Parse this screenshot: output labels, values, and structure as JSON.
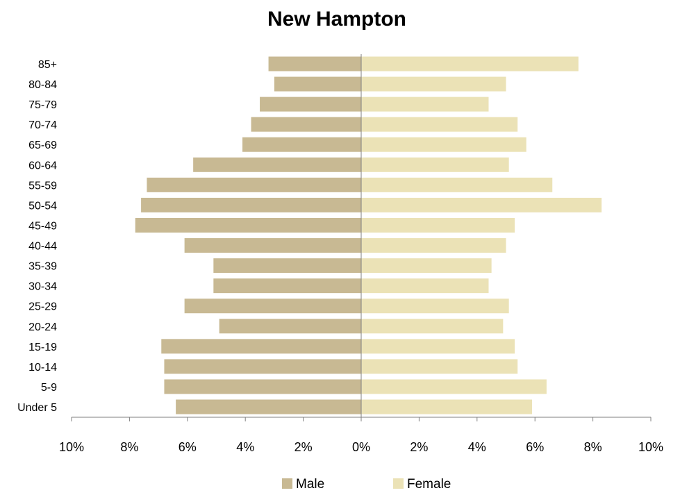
{
  "chart_data": {
    "type": "bar",
    "orientation": "horizontal",
    "title": "New Hampton",
    "categories": [
      "Under 5",
      "5-9",
      "10-14",
      "15-19",
      "20-24",
      "25-29",
      "30-34",
      "35-39",
      "40-44",
      "45-49",
      "50-54",
      "55-59",
      "60-64",
      "65-69",
      "70-74",
      "75-79",
      "80-84",
      "85+"
    ],
    "series": [
      {
        "name": "Male",
        "color": "#c8b993",
        "values": [
          6.4,
          6.8,
          6.8,
          6.9,
          4.9,
          6.1,
          5.1,
          5.1,
          6.1,
          7.8,
          7.6,
          7.4,
          5.8,
          4.1,
          3.8,
          3.5,
          3.0,
          3.2
        ]
      },
      {
        "name": "Female",
        "color": "#ebe2b6",
        "values": [
          5.9,
          6.4,
          5.4,
          5.3,
          4.9,
          5.1,
          4.4,
          4.5,
          5.0,
          5.3,
          8.3,
          6.6,
          5.1,
          5.7,
          5.4,
          4.4,
          5.0,
          7.5
        ]
      }
    ],
    "xlim": [
      -10,
      10
    ],
    "xticks": [
      -10,
      -8,
      -6,
      -4,
      -2,
      0,
      2,
      4,
      6,
      8,
      10
    ],
    "xtick_labels": [
      "10%",
      "8%",
      "6%",
      "4%",
      "2%",
      "0%",
      "2%",
      "4%",
      "6%",
      "8%",
      "10%"
    ],
    "legend_position": "bottom",
    "grid": false
  }
}
